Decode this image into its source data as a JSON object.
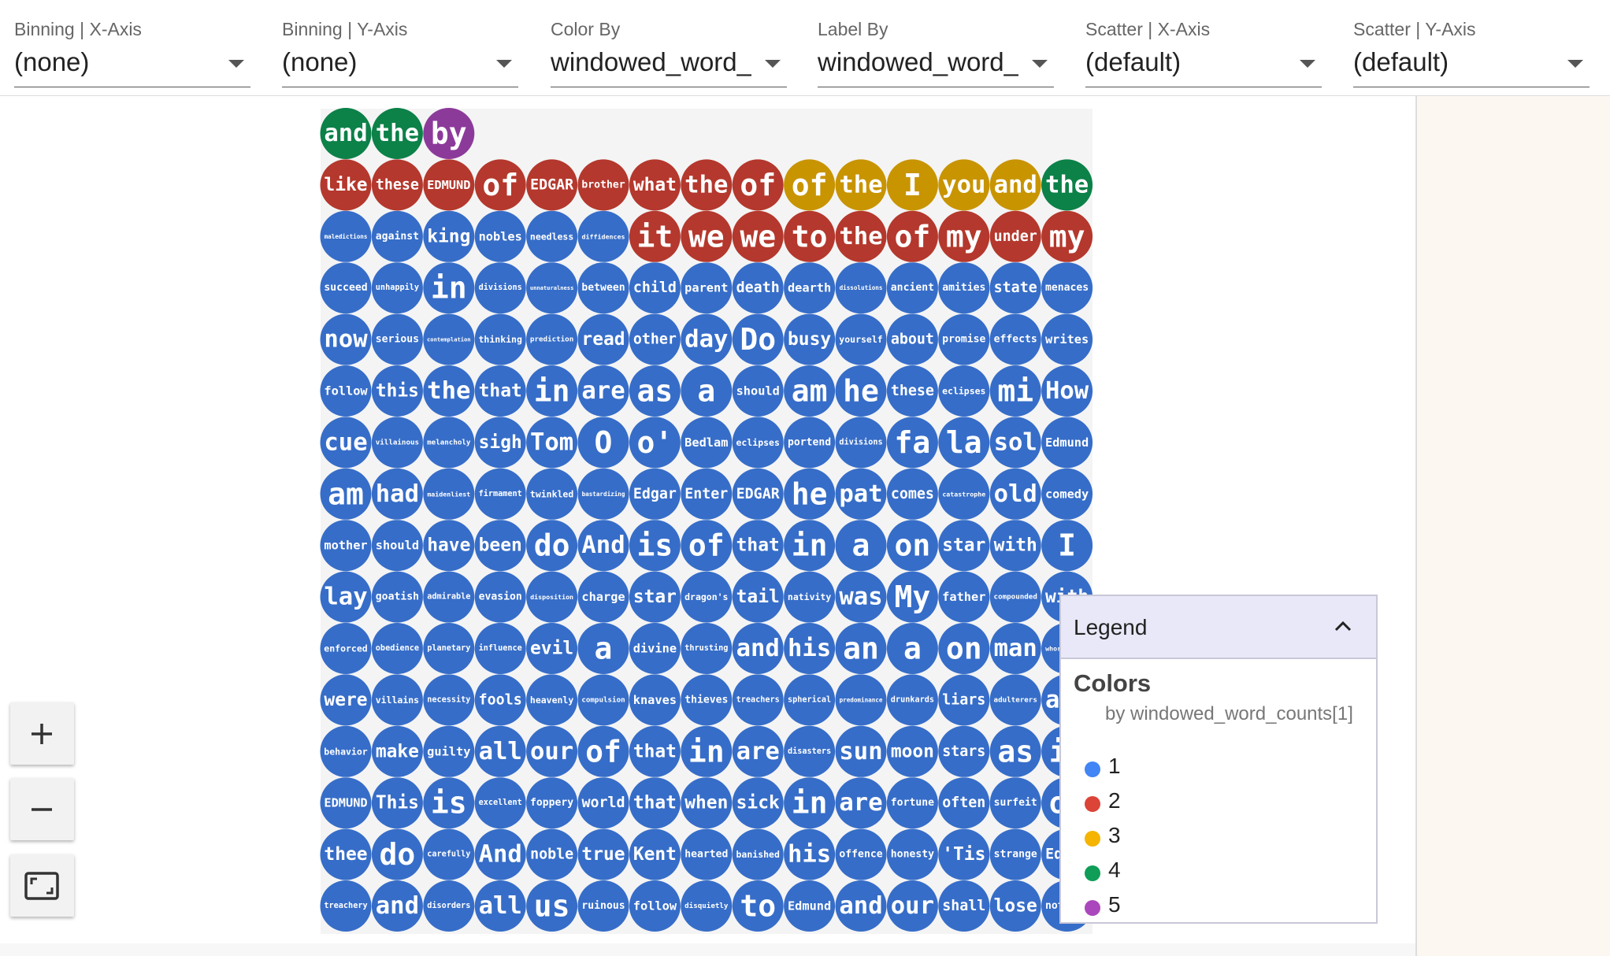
{
  "toolbar": [
    {
      "label": "Binning | X-Axis",
      "value": "(none)"
    },
    {
      "label": "Binning | Y-Axis",
      "value": "(none)"
    },
    {
      "label": "Color By",
      "value": "windowed_word_c"
    },
    {
      "label": "Label By",
      "value": "windowed_word_c"
    },
    {
      "label": "Scatter | X-Axis",
      "value": "(default)"
    },
    {
      "label": "Scatter | Y-Axis",
      "value": "(default)"
    }
  ],
  "legend": {
    "title": "Legend",
    "section": "Colors",
    "subtitle": "by windowed_word_counts[1]",
    "items": [
      {
        "label": "1",
        "color": "#4285f4"
      },
      {
        "label": "2",
        "color": "#db4437"
      },
      {
        "label": "3",
        "color": "#f4b400"
      },
      {
        "label": "4",
        "color": "#0f9d58"
      },
      {
        "label": "5",
        "color": "#ab47bc"
      }
    ]
  },
  "grid": {
    "rows": [
      [
        [
          "and",
          4
        ],
        [
          "the",
          4
        ],
        [
          "by",
          5
        ]
      ],
      [
        [
          "like",
          2
        ],
        [
          "these",
          2
        ],
        [
          "EDMUND",
          2
        ],
        [
          "of",
          2
        ],
        [
          "EDGAR",
          2
        ],
        [
          "brother",
          2
        ],
        [
          "what",
          2
        ],
        [
          "the",
          2
        ],
        [
          "of",
          2
        ],
        [
          "of",
          3
        ],
        [
          "the",
          3
        ],
        [
          "I",
          3
        ],
        [
          "you",
          3
        ],
        [
          "and",
          3
        ],
        [
          "the",
          4
        ]
      ],
      [
        [
          "maledictions",
          1
        ],
        [
          "against",
          1
        ],
        [
          "king",
          1
        ],
        [
          "nobles",
          1
        ],
        [
          "needless",
          1
        ],
        [
          "diffidences",
          1
        ],
        [
          "it",
          2
        ],
        [
          "we",
          2
        ],
        [
          "we",
          2
        ],
        [
          "to",
          2
        ],
        [
          "the",
          2
        ],
        [
          "of",
          2
        ],
        [
          "my",
          2
        ],
        [
          "under",
          2
        ],
        [
          "my",
          2
        ]
      ],
      [
        [
          "succeed",
          1
        ],
        [
          "unhappily",
          1
        ],
        [
          "in",
          1
        ],
        [
          "divisions",
          1
        ],
        [
          "unnaturalness",
          1
        ],
        [
          "between",
          1
        ],
        [
          "child",
          1
        ],
        [
          "parent",
          1
        ],
        [
          "death",
          1
        ],
        [
          "dearth",
          1
        ],
        [
          "dissolutions",
          1
        ],
        [
          "ancient",
          1
        ],
        [
          "amities",
          1
        ],
        [
          "state",
          1
        ],
        [
          "menaces",
          1
        ]
      ],
      [
        [
          "now",
          1
        ],
        [
          "serious",
          1
        ],
        [
          "contemplation",
          1
        ],
        [
          "thinking",
          1
        ],
        [
          "prediction",
          1
        ],
        [
          "read",
          1
        ],
        [
          "other",
          1
        ],
        [
          "day",
          1
        ],
        [
          "Do",
          1
        ],
        [
          "busy",
          1
        ],
        [
          "yourself",
          1
        ],
        [
          "about",
          1
        ],
        [
          "promise",
          1
        ],
        [
          "effects",
          1
        ],
        [
          "writes",
          1
        ]
      ],
      [
        [
          "follow",
          1
        ],
        [
          "this",
          1
        ],
        [
          "the",
          1
        ],
        [
          "that",
          1
        ],
        [
          "in",
          1
        ],
        [
          "are",
          1
        ],
        [
          "as",
          1
        ],
        [
          "a",
          1
        ],
        [
          "should",
          1
        ],
        [
          "am",
          1
        ],
        [
          "he",
          1
        ],
        [
          "these",
          1
        ],
        [
          "eclipses",
          1
        ],
        [
          "mi",
          1
        ],
        [
          "How",
          1
        ]
      ],
      [
        [
          "cue",
          1
        ],
        [
          "villainous",
          1
        ],
        [
          "melancholy",
          1
        ],
        [
          "sigh",
          1
        ],
        [
          "Tom",
          1
        ],
        [
          "O",
          1
        ],
        [
          "o'",
          1
        ],
        [
          "Bedlam",
          1
        ],
        [
          "eclipses",
          1
        ],
        [
          "portend",
          1
        ],
        [
          "divisions",
          1
        ],
        [
          "fa",
          1
        ],
        [
          "la",
          1
        ],
        [
          "sol",
          1
        ],
        [
          "Edmund",
          1
        ]
      ],
      [
        [
          "am",
          1
        ],
        [
          "had",
          1
        ],
        [
          "maidenliest",
          1
        ],
        [
          "firmament",
          1
        ],
        [
          "twinkled",
          1
        ],
        [
          "bastardizing",
          1
        ],
        [
          "Edgar",
          1
        ],
        [
          "Enter",
          1
        ],
        [
          "EDGAR",
          1
        ],
        [
          "he",
          1
        ],
        [
          "pat",
          1
        ],
        [
          "comes",
          1
        ],
        [
          "catastrophe",
          1
        ],
        [
          "old",
          1
        ],
        [
          "comedy",
          1
        ]
      ],
      [
        [
          "mother",
          1
        ],
        [
          "should",
          1
        ],
        [
          "have",
          1
        ],
        [
          "been",
          1
        ],
        [
          "do",
          1
        ],
        [
          "And",
          1
        ],
        [
          "is",
          1
        ],
        [
          "of",
          1
        ],
        [
          "that",
          1
        ],
        [
          "in",
          1
        ],
        [
          "a",
          1
        ],
        [
          "on",
          1
        ],
        [
          "star",
          1
        ],
        [
          "with",
          1
        ],
        [
          "I",
          1
        ]
      ],
      [
        [
          "lay",
          1
        ],
        [
          "goatish",
          1
        ],
        [
          "admirable",
          1
        ],
        [
          "evasion",
          1
        ],
        [
          "disposition",
          1
        ],
        [
          "charge",
          1
        ],
        [
          "star",
          1
        ],
        [
          "dragon's",
          1
        ],
        [
          "tail",
          1
        ],
        [
          "nativity",
          1
        ],
        [
          "was",
          1
        ],
        [
          "My",
          1
        ],
        [
          "father",
          1
        ],
        [
          "compounded",
          1
        ],
        [
          "with",
          1
        ]
      ],
      [
        [
          "enforced",
          1
        ],
        [
          "obedience",
          1
        ],
        [
          "planetary",
          1
        ],
        [
          "influence",
          1
        ],
        [
          "evil",
          1
        ],
        [
          "a",
          1
        ],
        [
          "divine",
          1
        ],
        [
          "thrusting",
          1
        ],
        [
          "and",
          1
        ],
        [
          "his",
          1
        ],
        [
          "an",
          1
        ],
        [
          "a",
          1
        ],
        [
          "on",
          1
        ],
        [
          "man",
          1
        ],
        [
          "whoremaster",
          1
        ]
      ],
      [
        [
          "were",
          1
        ],
        [
          "villains",
          1
        ],
        [
          "necessity",
          1
        ],
        [
          "fools",
          1
        ],
        [
          "heavenly",
          1
        ],
        [
          "compulsion",
          1
        ],
        [
          "knaves",
          1
        ],
        [
          "thieves",
          1
        ],
        [
          "treachers",
          1
        ],
        [
          "spherical",
          1
        ],
        [
          "predominance",
          1
        ],
        [
          "drunkards",
          1
        ],
        [
          "liars",
          1
        ],
        [
          "adulterers",
          1
        ],
        [
          "and",
          1
        ]
      ],
      [
        [
          "behavior",
          1
        ],
        [
          "make",
          1
        ],
        [
          "guilty",
          1
        ],
        [
          "all",
          1
        ],
        [
          "our",
          1
        ],
        [
          "of",
          1
        ],
        [
          "that",
          1
        ],
        [
          "in",
          1
        ],
        [
          "are",
          1
        ],
        [
          "disasters",
          1
        ],
        [
          "sun",
          1
        ],
        [
          "moon",
          1
        ],
        [
          "stars",
          1
        ],
        [
          "as",
          1
        ],
        [
          "in",
          1
        ]
      ],
      [
        [
          "EDMUND",
          1
        ],
        [
          "This",
          1
        ],
        [
          "is",
          1
        ],
        [
          "excellent",
          1
        ],
        [
          "foppery",
          1
        ],
        [
          "world",
          1
        ],
        [
          "that",
          1
        ],
        [
          "when",
          1
        ],
        [
          "sick",
          1
        ],
        [
          "in",
          1
        ],
        [
          "are",
          1
        ],
        [
          "fortune",
          1
        ],
        [
          "often",
          1
        ],
        [
          "surfeit",
          1
        ],
        [
          "of",
          1
        ]
      ],
      [
        [
          "thee",
          1
        ],
        [
          "do",
          1
        ],
        [
          "carefully",
          1
        ],
        [
          "And",
          1
        ],
        [
          "noble",
          1
        ],
        [
          "true",
          1
        ],
        [
          "Kent",
          1
        ],
        [
          "hearted",
          1
        ],
        [
          "banished",
          1
        ],
        [
          "his",
          1
        ],
        [
          "offence",
          1
        ],
        [
          "honesty",
          1
        ],
        [
          "'Tis",
          1
        ],
        [
          "strange",
          1
        ],
        [
          "Edgar",
          1
        ]
      ],
      [
        [
          "treachery",
          1
        ],
        [
          "and",
          1
        ],
        [
          "disorders",
          1
        ],
        [
          "all",
          1
        ],
        [
          "us",
          1
        ],
        [
          "ruinous",
          1
        ],
        [
          "follow",
          1
        ],
        [
          "disquietly",
          1
        ],
        [
          "to",
          1
        ],
        [
          "Edmund",
          1
        ],
        [
          "and",
          1
        ],
        [
          "our",
          1
        ],
        [
          "shall",
          1
        ],
        [
          "lose",
          1
        ],
        [
          "nothing",
          1
        ]
      ]
    ]
  }
}
